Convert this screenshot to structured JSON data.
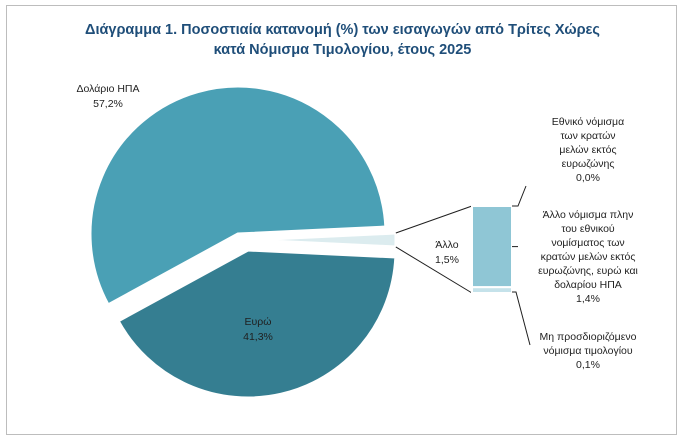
{
  "title_line1": "Διάγραμμα 1. Ποσοστιαία κατανομή (%) των εισαγωγών από Τρίτες Χώρες",
  "title_line2": "κατά Νόμισμα Τιμολογίου, έτους 2025",
  "chart_data": {
    "type": "bar-of-pie",
    "pie": {
      "slices": [
        {
          "name": "Δολάριο ΗΠΑ",
          "value": 57.2,
          "label": "57,2%",
          "color": "#4aa0b5"
        },
        {
          "name": "Ευρώ",
          "value": 41.3,
          "label": "41,3%",
          "color": "#357e91"
        },
        {
          "name": "Άλλο",
          "value": 1.5,
          "label": "1,5%",
          "color": "#dcecef"
        }
      ]
    },
    "bar": {
      "segments": [
        {
          "name_lines": [
            "Εθνικό νόμισμα",
            "των κρατών",
            "μελών εκτός",
            "ευρωζώνης"
          ],
          "value": 0.0,
          "label": "0,0%",
          "color": "#5aaec2"
        },
        {
          "name_lines": [
            "Άλλο νόμισμα πλην",
            "του εθνικού",
            "νομίσματος των",
            "κρατών μελών εκτός",
            "ευρωζώνης, ευρώ και",
            "δολαρίου ΗΠΑ"
          ],
          "value": 1.4,
          "label": "1,4%",
          "color": "#8fc6d5"
        },
        {
          "name_lines": [
            "Μη προσδιοριζόμενο",
            "νόμισμα τιμολογίου"
          ],
          "value": 0.1,
          "label": "0,1%",
          "color": "#c5e2ea"
        }
      ]
    },
    "colors": {
      "text": "#1f1f1f",
      "title": "#1f4e79",
      "connector": "#1f1f1f"
    }
  }
}
